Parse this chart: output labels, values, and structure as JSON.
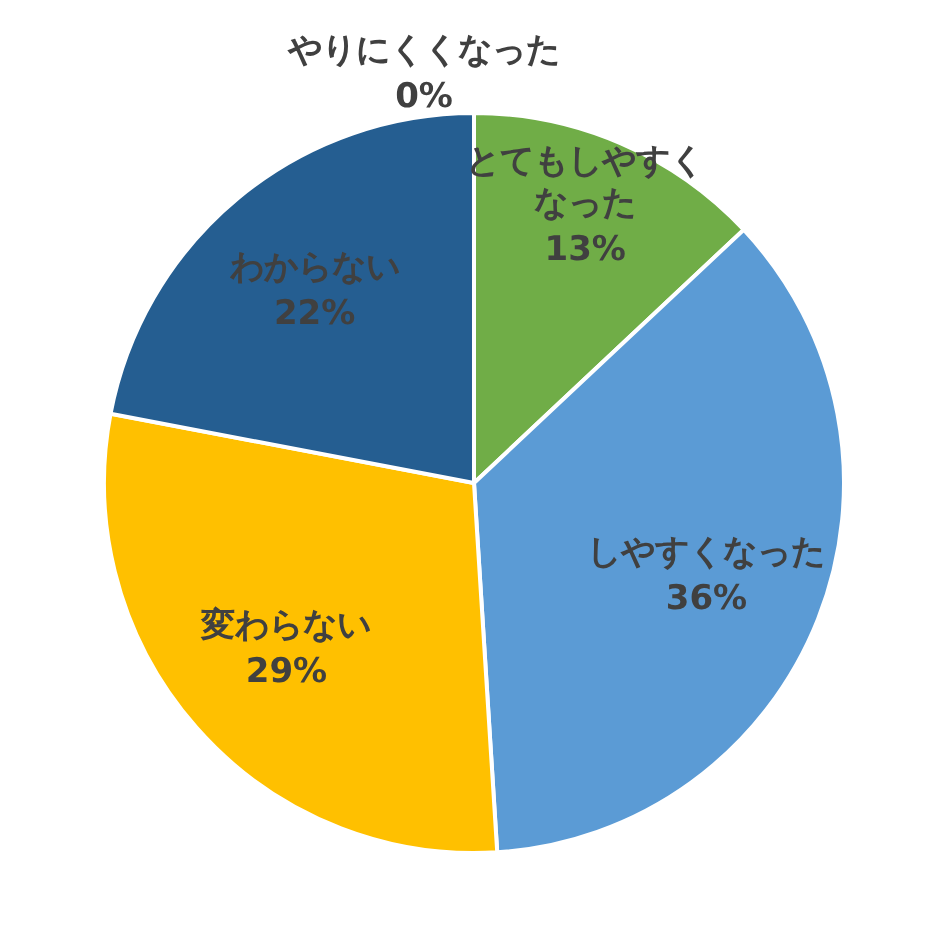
{
  "chart_data": {
    "type": "pie",
    "categories": [
      "とてもしやすくなった",
      "しやすくなった",
      "変わらない",
      "わからない",
      "やりにくくなった"
    ],
    "values": [
      13,
      36,
      29,
      22,
      0
    ],
    "value_labels": [
      "13%",
      "36%",
      "29%",
      "22%",
      "0%"
    ],
    "colors": [
      "#70ad47",
      "#5b9bd5",
      "#ffc000",
      "#255e91",
      "#a5a5a5"
    ],
    "legend": false
  }
}
